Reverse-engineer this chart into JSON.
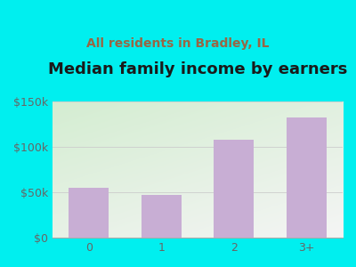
{
  "title": "Median family income by earners",
  "subtitle": "All residents in Bradley, IL",
  "categories": [
    "0",
    "1",
    "2",
    "3+"
  ],
  "values": [
    55000,
    47000,
    108000,
    132000
  ],
  "bar_color": "#c8aed4",
  "background_color": "#00EFEF",
  "plot_bg_topleft": "#d4ecd0",
  "plot_bg_bottomright": "#f5f5f5",
  "title_color": "#1a1a1a",
  "subtitle_color": "#996644",
  "tick_color": "#666666",
  "ylim": [
    0,
    150000
  ],
  "yticks": [
    0,
    50000,
    100000,
    150000
  ],
  "ytick_labels": [
    "$0",
    "$50k",
    "$100k",
    "$150k"
  ],
  "title_fontsize": 13,
  "subtitle_fontsize": 10
}
